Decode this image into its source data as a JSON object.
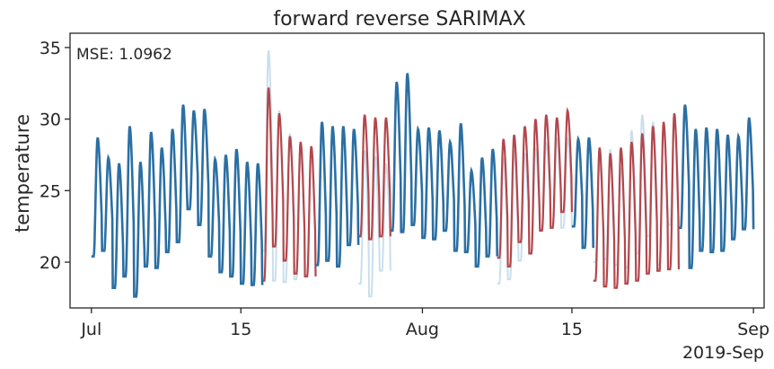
{
  "chart_data": {
    "type": "line",
    "title": "forward reverse SARIMAX",
    "ylabel": "temperature",
    "xlabel": "",
    "annotation": "MSE: 1.0962",
    "x_offset_label": "2019-Sep",
    "xlim": [
      "2019-06-29",
      "2019-09-02"
    ],
    "ylim": [
      16.8,
      36.0
    ],
    "y_ticks": [
      20,
      25,
      30,
      35
    ],
    "x_ticks": [
      {
        "date": "2019-07-01",
        "label": "Jul"
      },
      {
        "date": "2019-07-15",
        "label": "15"
      },
      {
        "date": "2019-08-01",
        "label": "Aug"
      },
      {
        "date": "2019-08-15",
        "label": "15"
      },
      {
        "date": "2019-09-01",
        "label": "Sep"
      }
    ],
    "grid": false,
    "colors": {
      "observed": "#2b6fa3",
      "actual_gap": "#c9dfec",
      "forecast": "#b3474c",
      "axes": "#262626"
    },
    "daily": {
      "start_date": "2019-07-01",
      "peak_hour": 14,
      "observed_segments": [
        {
          "start": "2019-07-01",
          "end": "2019-07-17",
          "max": [
            28.7,
            27.3,
            26.9,
            29.5,
            27.0,
            29.1,
            28.0,
            29.3,
            31.0,
            30.6,
            30.7,
            27.2,
            27.5,
            27.9,
            27.0,
            26.9
          ],
          "min": [
            20.4,
            20.8,
            18.2,
            19.0,
            17.6,
            19.7,
            19.6,
            20.7,
            21.4,
            23.7,
            22.6,
            20.4,
            19.3,
            19.0,
            18.5,
            18.4
          ]
        },
        {
          "start": "2019-07-22",
          "end": "2019-07-26",
          "max": [
            29.8,
            29.5,
            29.5,
            29.3
          ],
          "min": [
            19.8,
            20.1,
            19.7,
            21.2
          ]
        },
        {
          "start": "2019-07-29",
          "end": "2019-08-08",
          "max": [
            32.6,
            33.2,
            29.3,
            29.4,
            29.2,
            28.4,
            29.7,
            26.4,
            27.3,
            27.9
          ],
          "min": [
            22.2,
            22.1,
            22.6,
            21.7,
            21.6,
            22.2,
            20.8,
            20.7,
            19.7,
            20.4
          ]
        },
        {
          "start": "2019-08-15",
          "end": "2019-08-17",
          "max": [
            28.6,
            28.7
          ],
          "min": [
            22.5,
            21.0
          ]
        },
        {
          "start": "2019-08-25",
          "end": "2019-09-01",
          "max": [
            31.0,
            29.3,
            29.4,
            29.3,
            28.9,
            28.8,
            30.1
          ],
          "min": [
            22.4,
            19.6,
            20.8,
            20.7,
            20.8,
            21.6,
            22.3
          ]
        }
      ],
      "forecast_segments": [
        {
          "start": "2019-07-17",
          "end": "2019-07-22",
          "max": [
            32.2,
            30.4,
            28.8,
            28.4,
            28.1
          ],
          "min": [
            18.7,
            21.1,
            20.1,
            19.2,
            19.0
          ]
        },
        {
          "start": "2019-07-26",
          "end": "2019-07-29",
          "max": [
            30.3,
            30.1,
            30.1
          ],
          "min": [
            21.8,
            21.6,
            21.8
          ]
        },
        {
          "start": "2019-08-08",
          "end": "2019-08-15",
          "max": [
            28.6,
            28.9,
            29.5,
            30.0,
            30.3,
            30.1,
            30.6
          ],
          "min": [
            20.3,
            19.7,
            21.4,
            20.6,
            22.2,
            22.4,
            23.5
          ]
        },
        {
          "start": "2019-08-17",
          "end": "2019-08-25",
          "max": [
            28.0,
            27.6,
            28.0,
            28.4,
            29.0,
            29.5,
            29.8,
            30.4
          ],
          "min": [
            18.7,
            18.3,
            18.2,
            18.5,
            18.7,
            19.2,
            19.4,
            19.5
          ]
        }
      ],
      "actual_in_gaps": [
        {
          "start": "2019-07-17",
          "end": "2019-07-22",
          "max": [
            34.8,
            30.6,
            29.0,
            27.6,
            28.0
          ],
          "min": [
            20.8,
            18.7,
            18.6,
            18.8,
            19.0
          ]
        },
        {
          "start": "2019-07-26",
          "end": "2019-07-29",
          "max": [
            27.8,
            27.4,
            26.9
          ],
          "min": [
            18.5,
            17.6,
            19.4
          ]
        },
        {
          "start": "2019-08-08",
          "end": "2019-08-15",
          "max": [
            27.3,
            27.8,
            27.6,
            27.9,
            28.3,
            28.6,
            28.6
          ],
          "min": [
            18.5,
            18.8,
            20.1,
            20.6,
            22.3,
            22.4,
            22.4
          ]
        },
        {
          "start": "2019-08-17",
          "end": "2019-08-25",
          "max": [
            27.0,
            27.9,
            26.5,
            29.2,
            30.3,
            29.8,
            29.7,
            29.8
          ],
          "min": [
            20.0,
            20.2,
            19.8,
            19.6,
            20.6,
            21.8,
            19.8,
            22.6
          ]
        }
      ]
    }
  }
}
